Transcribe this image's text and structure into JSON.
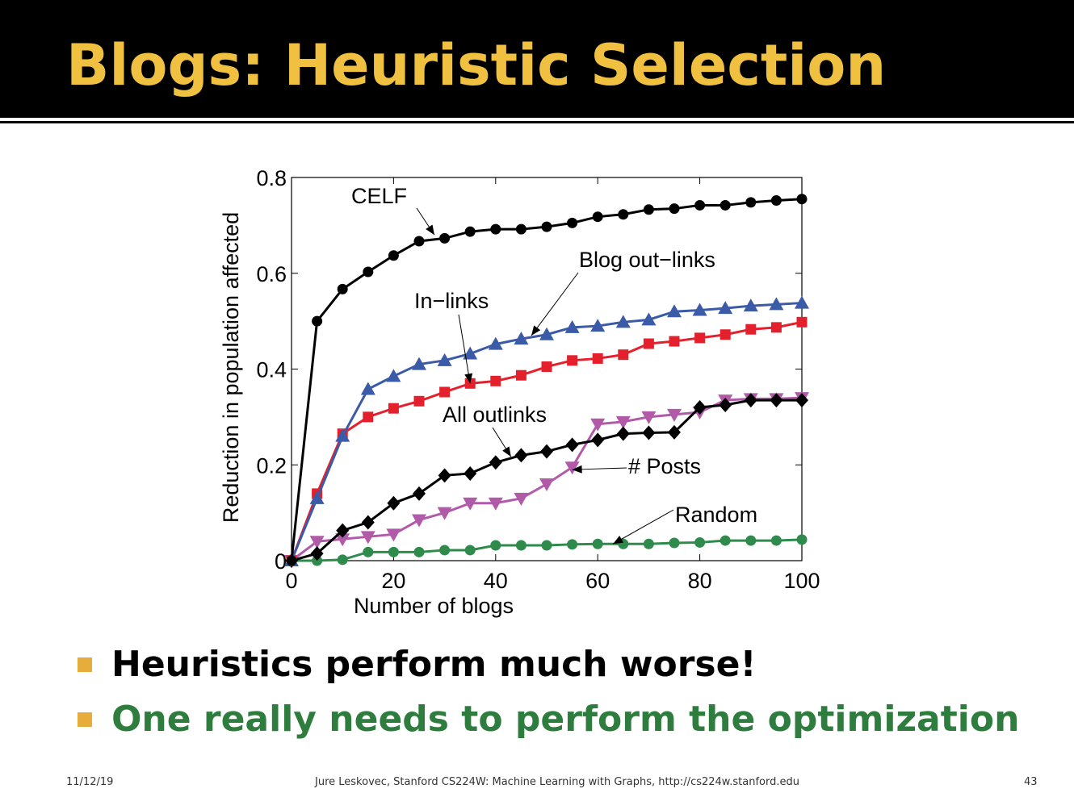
{
  "slide": {
    "title": "Blogs: Heuristic Selection",
    "title_color": "#f0c040",
    "bullets": [
      {
        "text": "Heuristics perform much worse!",
        "color": "#000000"
      },
      {
        "text": "One really needs to perform the optimization",
        "color": "#2e7d3e"
      }
    ],
    "bullet_marker_color": "#e6ac3c",
    "footer": {
      "date": "11/12/19",
      "credit": "Jure Leskovec, Stanford CS224W: Machine Learning with Graphs, http://cs224w.stanford.edu",
      "page": "43"
    }
  },
  "chart_data": {
    "type": "line",
    "title": "",
    "xlabel": "Number of blogs",
    "ylabel": "Reduction in population affected",
    "xlim": [
      0,
      100
    ],
    "ylim": [
      0,
      0.8
    ],
    "xticks": [
      0,
      20,
      40,
      60,
      80,
      100
    ],
    "xtick_labels": [
      "0",
      "20",
      "40",
      "60",
      "80",
      "100"
    ],
    "yticks": [
      0,
      0.2,
      0.4,
      0.6,
      0.8
    ],
    "ytick_labels": [
      "0",
      "0.2",
      "0.4",
      "0.6",
      "0.8"
    ],
    "grid": false,
    "x": [
      0,
      5,
      10,
      15,
      20,
      25,
      30,
      35,
      40,
      45,
      50,
      55,
      60,
      65,
      70,
      75,
      80,
      85,
      90,
      95,
      100
    ],
    "series": [
      {
        "name": "CELF",
        "color": "#000000",
        "marker": "circle",
        "values": [
          0,
          0.5,
          0.567,
          0.603,
          0.637,
          0.667,
          0.673,
          0.687,
          0.692,
          0.692,
          0.697,
          0.705,
          0.718,
          0.723,
          0.733,
          0.735,
          0.742,
          0.742,
          0.748,
          0.752,
          0.755
        ]
      },
      {
        "name": "Blog out−links",
        "color": "#3b5aa8",
        "marker": "triangle-up",
        "values": [
          0,
          0.13,
          0.26,
          0.358,
          0.385,
          0.41,
          0.418,
          0.432,
          0.452,
          0.463,
          0.472,
          0.487,
          0.49,
          0.498,
          0.503,
          0.52,
          0.523,
          0.527,
          0.532,
          0.535,
          0.538
        ]
      },
      {
        "name": "In−links",
        "color": "#e4202c",
        "marker": "square",
        "values": [
          0,
          0.14,
          0.265,
          0.3,
          0.318,
          0.333,
          0.352,
          0.37,
          0.375,
          0.387,
          0.405,
          0.418,
          0.422,
          0.43,
          0.453,
          0.458,
          0.465,
          0.472,
          0.483,
          0.487,
          0.498
        ]
      },
      {
        "name": "All outlinks",
        "color": "#000000",
        "marker": "diamond",
        "values": [
          0,
          0.015,
          0.063,
          0.08,
          0.12,
          0.14,
          0.178,
          0.182,
          0.205,
          0.22,
          0.228,
          0.242,
          0.252,
          0.265,
          0.267,
          0.268,
          0.32,
          0.325,
          0.335,
          0.335,
          0.335
        ]
      },
      {
        "name": "# Posts",
        "color": "#b05aa8",
        "marker": "triangle-down",
        "values": [
          0,
          0.04,
          0.045,
          0.05,
          0.055,
          0.085,
          0.1,
          0.12,
          0.12,
          0.13,
          0.16,
          0.195,
          0.285,
          0.29,
          0.3,
          0.305,
          0.31,
          0.335,
          0.338,
          0.338,
          0.34
        ]
      },
      {
        "name": "Random",
        "color": "#2e8b4c",
        "marker": "circle",
        "values": [
          0,
          0,
          0.002,
          0.018,
          0.018,
          0.018,
          0.022,
          0.022,
          0.032,
          0.032,
          0.032,
          0.034,
          0.035,
          0.035,
          0.035,
          0.037,
          0.038,
          0.042,
          0.042,
          0.042,
          0.044
        ]
      }
    ],
    "annotations": [
      {
        "text": "CELF",
        "points_to": [
          28,
          0.68
        ]
      },
      {
        "text": "Blog out−links",
        "points_to": [
          47,
          0.47
        ]
      },
      {
        "text": "In−links",
        "points_to": [
          35,
          0.37
        ]
      },
      {
        "text": "All outlinks",
        "points_to": [
          43,
          0.217
        ]
      },
      {
        "text": "# Posts",
        "points_to": [
          55,
          0.19
        ]
      },
      {
        "text": "Random",
        "points_to": [
          63,
          0.035
        ]
      }
    ]
  }
}
